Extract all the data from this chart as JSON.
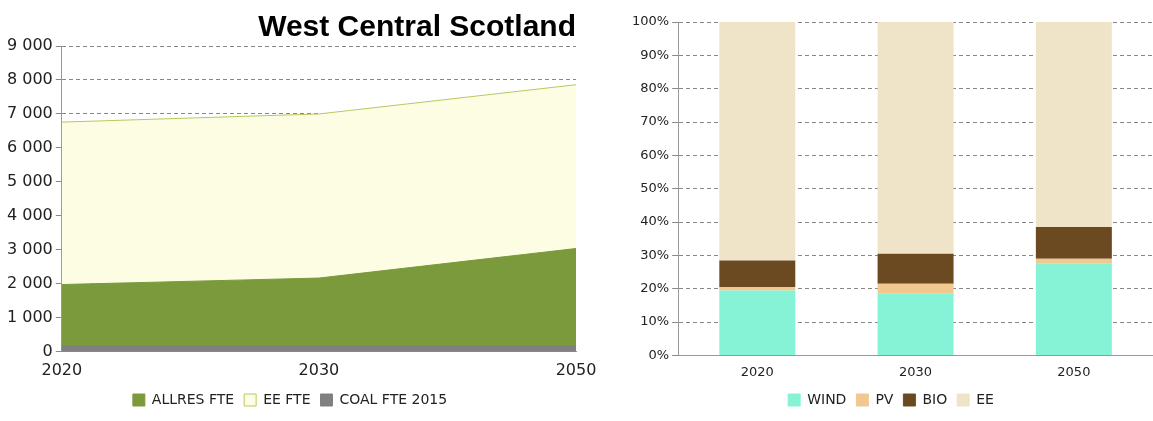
{
  "chart_data": [
    {
      "type": "area",
      "title": "West Central Scotland",
      "categories": [
        "2020",
        "2030",
        "2050"
      ],
      "stacked": true,
      "series": [
        {
          "name": "ALLRES FTE",
          "color": "#7a9a3c",
          "values": [
            1980,
            2170,
            3040
          ]
        },
        {
          "name": "EE FTE",
          "color": "#fdfde4",
          "values": [
            4780,
            4830,
            4820
          ]
        },
        {
          "name": "COAL FTE 2015",
          "type": "line",
          "color": "#808080",
          "values": [
            100,
            100,
            100
          ]
        }
      ],
      "ylim": [
        0,
        9000
      ],
      "yticks": [
        {
          "value": 0,
          "label": "0"
        },
        {
          "value": 1000,
          "label": "1 000"
        },
        {
          "value": 2000,
          "label": "2 000"
        },
        {
          "value": 3000,
          "label": "3 000"
        },
        {
          "value": 4000,
          "label": "4 000"
        },
        {
          "value": 5000,
          "label": "5 000"
        },
        {
          "value": 6000,
          "label": "6 000"
        },
        {
          "value": 7000,
          "label": "7 000"
        },
        {
          "value": 8000,
          "label": "8 000"
        },
        {
          "value": 9000,
          "label": "9 000"
        }
      ],
      "grid": "y",
      "legend": "bottom"
    },
    {
      "type": "bar",
      "categories": [
        "2020",
        "2030",
        "2050"
      ],
      "stacked": true,
      "series": [
        {
          "name": "WIND",
          "color": "#86f2d6",
          "values": [
            19.5,
            18.5,
            27.5
          ]
        },
        {
          "name": "PV",
          "color": "#f0c890",
          "values": [
            1,
            3,
            1.5
          ]
        },
        {
          "name": "BIO",
          "color": "#6b4a22",
          "values": [
            8,
            9,
            9.5
          ]
        },
        {
          "name": "EE",
          "color": "#efe4c8",
          "values": [
            71.5,
            69.5,
            61.5
          ]
        }
      ],
      "ylim": [
        0,
        100
      ],
      "yticks": [
        {
          "value": 0,
          "label": "0%"
        },
        {
          "value": 10,
          "label": "10%"
        },
        {
          "value": 20,
          "label": "20%"
        },
        {
          "value": 30,
          "label": "30%"
        },
        {
          "value": 40,
          "label": "40%"
        },
        {
          "value": 50,
          "label": "50%"
        },
        {
          "value": 60,
          "label": "60%"
        },
        {
          "value": 70,
          "label": "70%"
        },
        {
          "value": 80,
          "label": "80%"
        },
        {
          "value": 90,
          "label": "90%"
        },
        {
          "value": 100,
          "label": "100%"
        }
      ],
      "grid": "y",
      "legend": "bottom"
    }
  ]
}
